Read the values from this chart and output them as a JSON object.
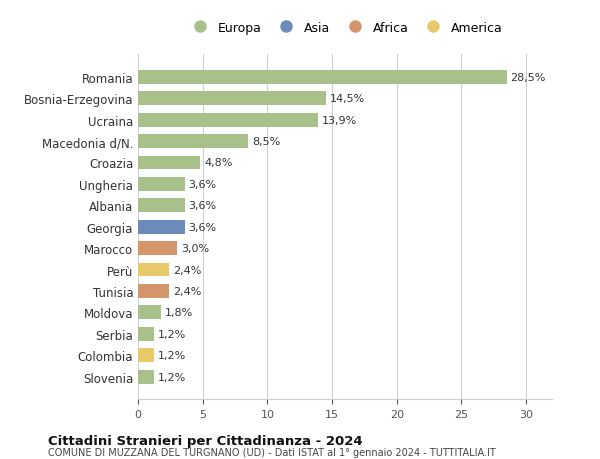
{
  "countries": [
    "Romania",
    "Bosnia-Erzegovina",
    "Ucraina",
    "Macedonia d/N.",
    "Croazia",
    "Ungheria",
    "Albania",
    "Georgia",
    "Marocco",
    "Perù",
    "Tunisia",
    "Moldova",
    "Serbia",
    "Colombia",
    "Slovenia"
  ],
  "values": [
    28.5,
    14.5,
    13.9,
    8.5,
    4.8,
    3.6,
    3.6,
    3.6,
    3.0,
    2.4,
    2.4,
    1.8,
    1.2,
    1.2,
    1.2
  ],
  "labels": [
    "28,5%",
    "14,5%",
    "13,9%",
    "8,5%",
    "4,8%",
    "3,6%",
    "3,6%",
    "3,6%",
    "3,0%",
    "2,4%",
    "2,4%",
    "1,8%",
    "1,2%",
    "1,2%",
    "1,2%"
  ],
  "continents": [
    "Europa",
    "Europa",
    "Europa",
    "Europa",
    "Europa",
    "Europa",
    "Europa",
    "Asia",
    "Africa",
    "America",
    "Africa",
    "Europa",
    "Europa",
    "America",
    "Europa"
  ],
  "continent_colors": {
    "Europa": "#a8c08a",
    "Asia": "#6b8cba",
    "Africa": "#d4956a",
    "America": "#e8c96a"
  },
  "legend_order": [
    "Europa",
    "Asia",
    "Africa",
    "America"
  ],
  "title": "Cittadini Stranieri per Cittadinanza - 2024",
  "subtitle": "COMUNE DI MUZZANA DEL TURGNANO (UD) - Dati ISTAT al 1° gennaio 2024 - TUTTITALIA.IT",
  "xlim": [
    0,
    32
  ],
  "xticks": [
    0,
    5,
    10,
    15,
    20,
    25,
    30
  ],
  "bg_color": "#ffffff",
  "grid_color": "#cccccc",
  "bar_height": 0.65
}
